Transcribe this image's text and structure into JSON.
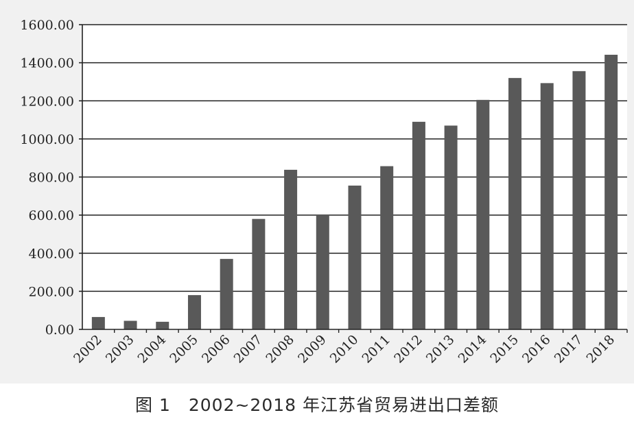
{
  "caption": "图 1　2002~2018 年江苏省贸易进出口差额",
  "colors": {
    "bar": "#595959",
    "background": "#f1f1f1",
    "plot_area": "#ffffff",
    "gridline": "#222222"
  },
  "chart_data": {
    "type": "bar",
    "title": "",
    "xlabel": "",
    "ylabel": "",
    "categories": [
      "2002",
      "2003",
      "2004",
      "2005",
      "2006",
      "2007",
      "2008",
      "2009",
      "2010",
      "2011",
      "2012",
      "2013",
      "2014",
      "2015",
      "2016",
      "2017",
      "2018"
    ],
    "values": [
      65,
      45,
      40,
      180,
      370,
      580,
      838,
      600,
      755,
      857,
      1090,
      1070,
      1205,
      1320,
      1293,
      1356,
      1442
    ],
    "ylim": [
      0,
      1600
    ],
    "yticks": [
      0,
      200,
      400,
      600,
      800,
      1000,
      1200,
      1400,
      1600
    ],
    "ytick_labels": [
      "0.00",
      "200.00",
      "400.00",
      "600.00",
      "800.00",
      "1000.00",
      "1200.00",
      "1400.00",
      "1600.00"
    ],
    "grid": true,
    "legend": "none"
  }
}
